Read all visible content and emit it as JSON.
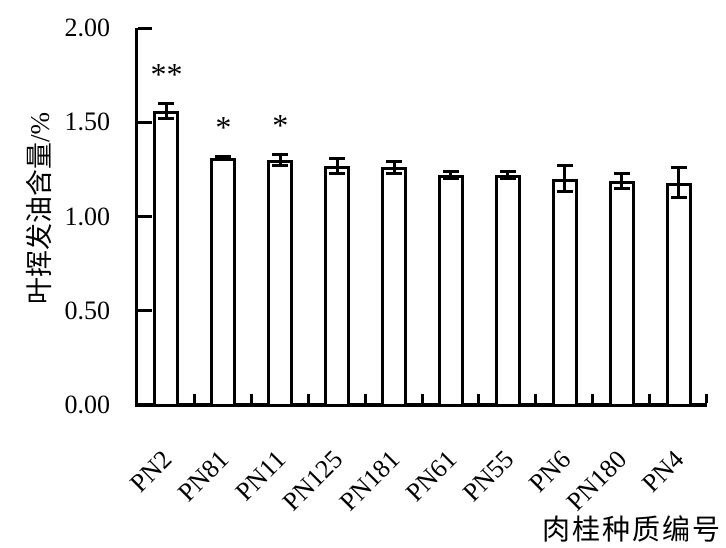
{
  "chart_data": {
    "type": "bar",
    "title": "",
    "categories": [
      "PN2",
      "PN81",
      "PN11",
      "PN125",
      "PN181",
      "PN61",
      "PN55",
      "PN6",
      "PN180",
      "PN4"
    ],
    "values": [
      1.56,
      1.31,
      1.3,
      1.27,
      1.26,
      1.22,
      1.22,
      1.2,
      1.19,
      1.18
    ],
    "errors": [
      0.04,
      0.01,
      0.03,
      0.04,
      0.03,
      0.02,
      0.02,
      0.07,
      0.04,
      0.08
    ],
    "significance": [
      "**",
      "*",
      "*",
      "",
      "",
      "",
      "",
      "",
      "",
      ""
    ],
    "xlabel": "肉桂种质编号",
    "ylabel": "叶挥发油含量/%",
    "ylim": [
      0,
      2.0
    ],
    "yticks": [
      "0.00",
      "0.50",
      "1.00",
      "1.50",
      "2.00"
    ],
    "grid": false,
    "legend_position": "none",
    "bar_fill": "#ffffff",
    "bar_border": "#000000",
    "axis_color": "#000000",
    "text_color": "#000000"
  }
}
